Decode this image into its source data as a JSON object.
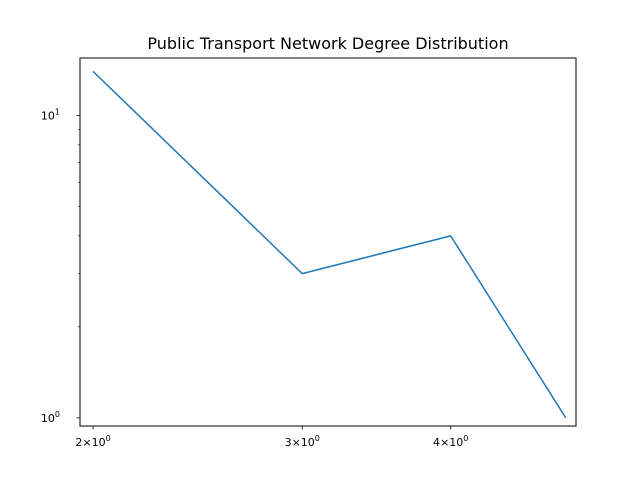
{
  "chart_data": {
    "type": "line",
    "title": "Public Transport Network Degree Distribution",
    "xlabel": "",
    "ylabel": "",
    "xscale": "log",
    "yscale": "log",
    "xlim": [
      1.95,
      5.1
    ],
    "ylim": [
      0.94,
      15.5
    ],
    "grid": false,
    "series": [
      {
        "x": [
          2,
          3,
          4,
          5
        ],
        "y": [
          14,
          3,
          4,
          1
        ],
        "color": "#1f77b4"
      }
    ],
    "x_ticks": [
      {
        "value": 2,
        "base": "2",
        "exp": "10",
        "sup": "0"
      },
      {
        "value": 3,
        "base": "3",
        "exp": "10",
        "sup": "0"
      },
      {
        "value": 4,
        "base": "4",
        "exp": "10",
        "sup": "0"
      }
    ],
    "y_ticks": [
      {
        "value": 1,
        "base": "10",
        "sup": "0"
      },
      {
        "value": 10,
        "base": "10",
        "sup": "1"
      }
    ],
    "y_minor_ticks": [
      2,
      3,
      4,
      5,
      6,
      7,
      8,
      9
    ]
  }
}
